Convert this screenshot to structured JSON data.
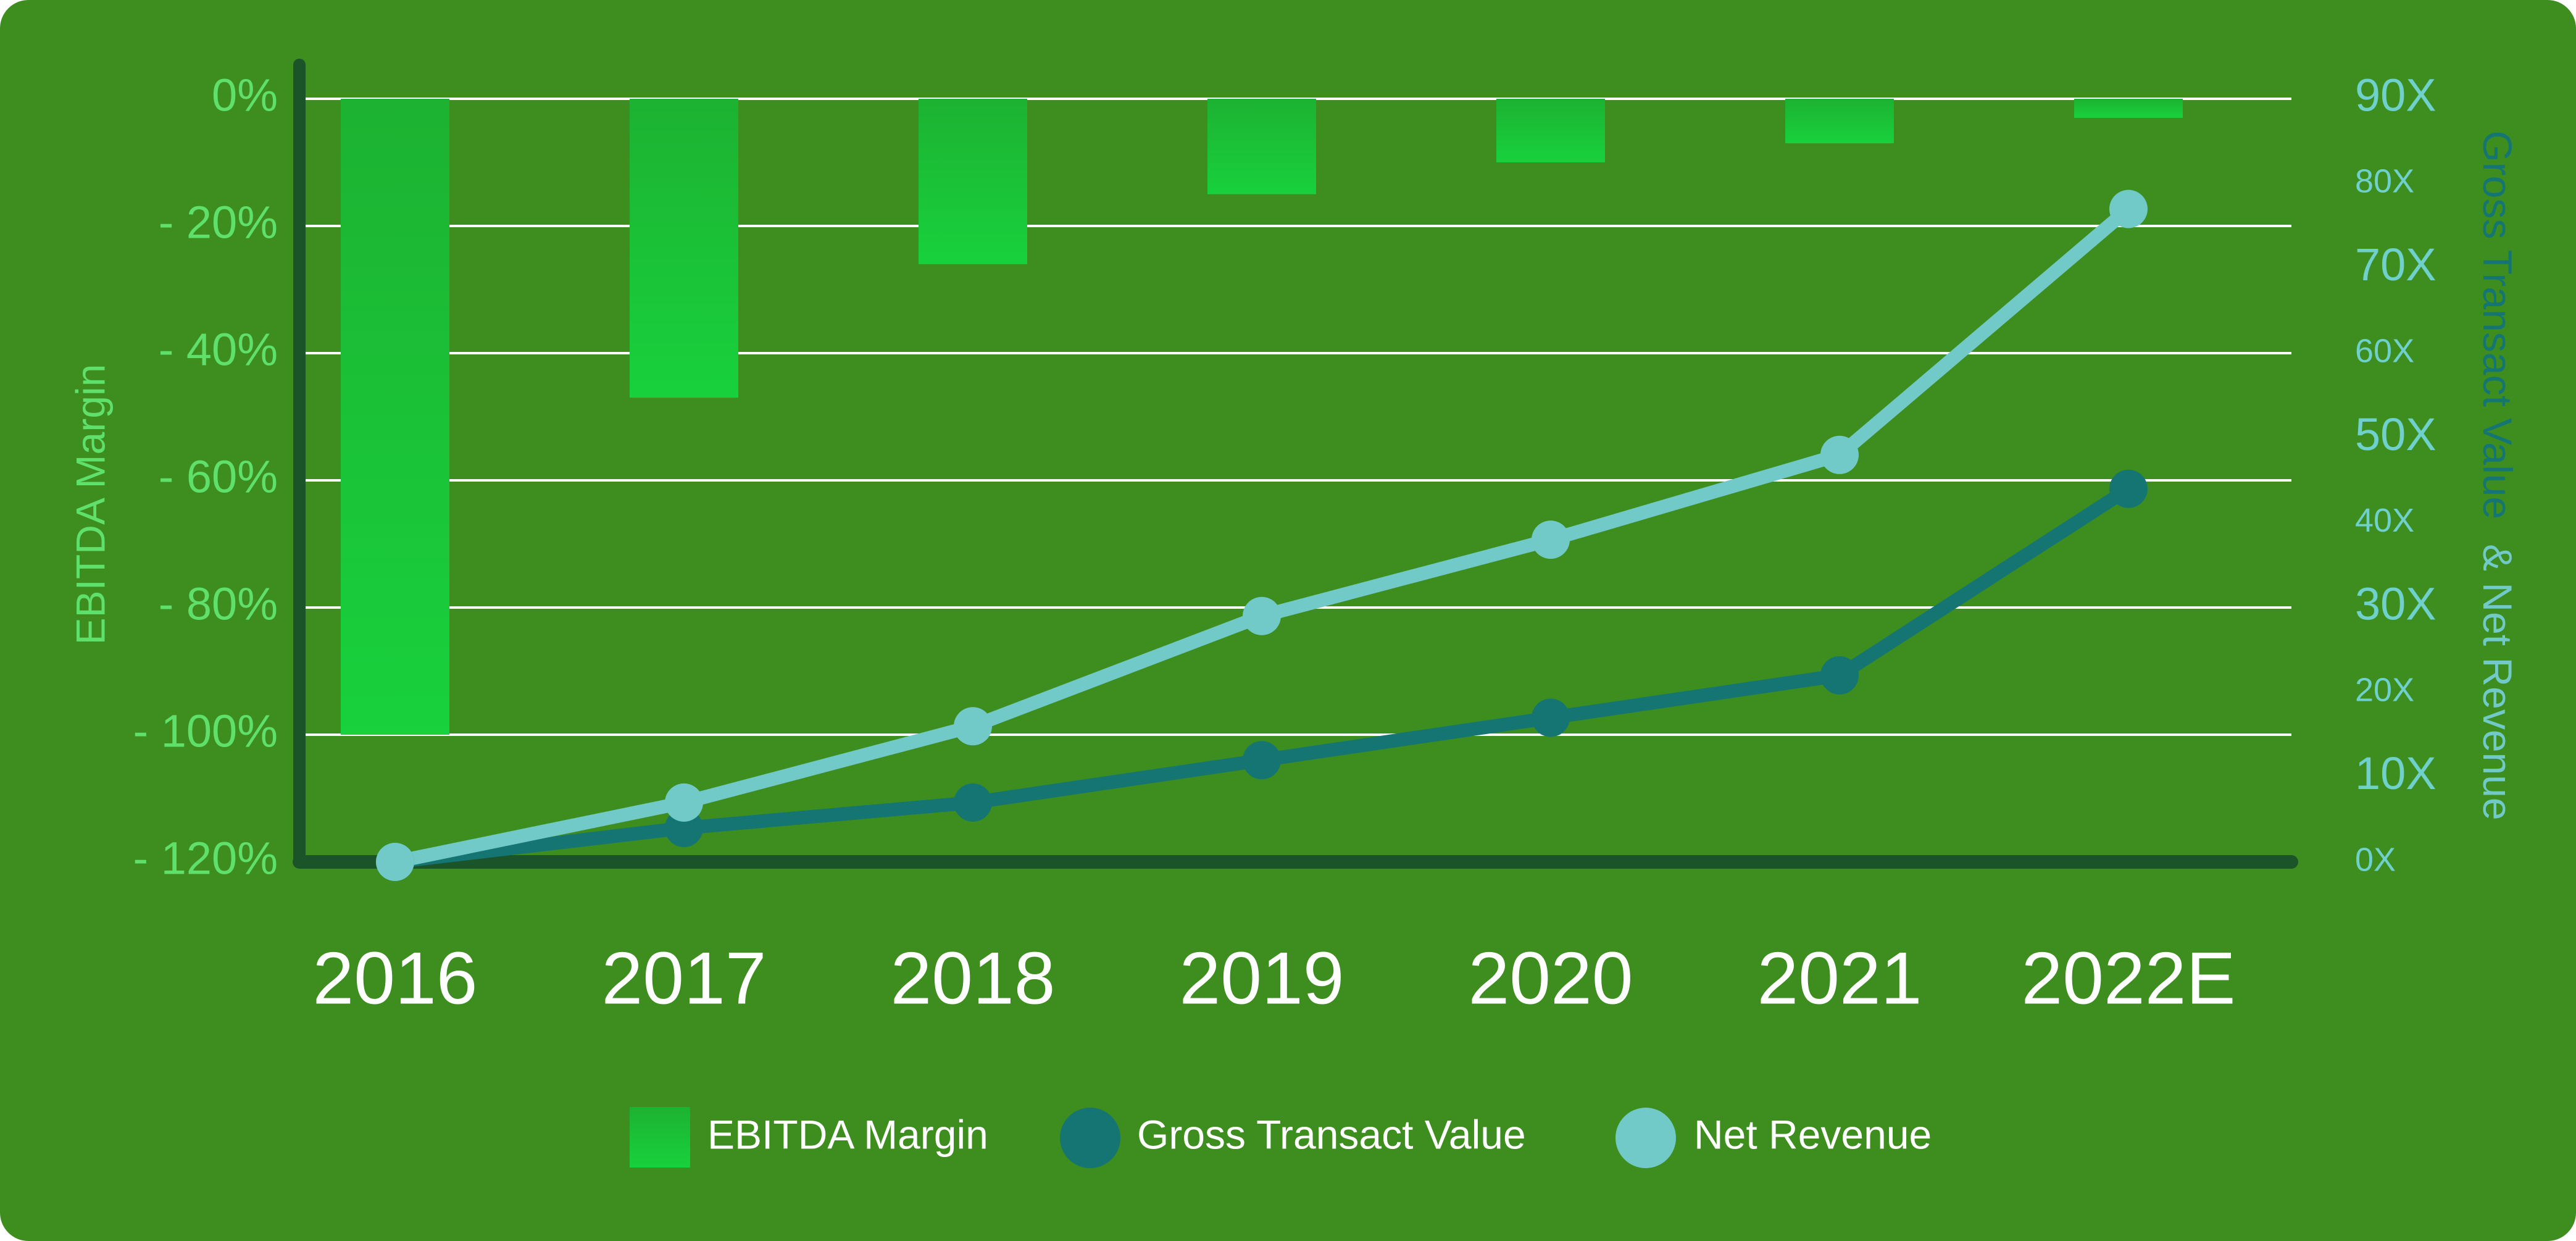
{
  "colors": {
    "background": "#3d8e1f",
    "bar_top": "#1db232",
    "bar_bottom": "#18d13c",
    "axis_line": "#1b5428",
    "grid": "#ffffff",
    "left_tick_text": "#5fe06b",
    "right_tick_text": "#6fd0cc",
    "category_text": "#ffffff",
    "gross_line": "#147573",
    "net_line": "#72cac8",
    "legend_text": "#ffffff"
  },
  "chart_data": {
    "type": "bar",
    "categories": [
      "2016",
      "2017",
      "2018",
      "2019",
      "2020",
      "2021",
      "2022E"
    ],
    "bar_series": {
      "name": "EBITDA Margin",
      "values": [
        -100,
        -47,
        -26,
        -15,
        -10,
        -7,
        -3
      ]
    },
    "line_series": [
      {
        "name": "Gross Transact Value",
        "values": [
          0,
          4,
          7,
          12,
          17,
          22,
          44
        ]
      },
      {
        "name": "Net Revenue",
        "values": [
          0,
          7,
          16,
          29,
          38,
          48,
          77
        ]
      }
    ],
    "y_left": {
      "label": "EBITDA Margin",
      "range": [
        -120,
        0
      ],
      "ticks": [
        0,
        -20,
        -40,
        -60,
        -80,
        -100,
        -120
      ],
      "tick_labels": [
        "0%",
        "- 20%",
        "- 40%",
        "- 60%",
        "- 80%",
        "- 100%",
        "- 120%"
      ]
    },
    "y_right": {
      "label_part1": "Gross Transact Value",
      "label_part2": "& Net Revenue",
      "range": [
        0,
        90
      ],
      "ticks": [
        90,
        80,
        70,
        60,
        50,
        40,
        30,
        20,
        10,
        0
      ],
      "tick_labels": [
        "90X",
        "80X",
        "70X",
        "60X",
        "50X",
        "40X",
        "30X",
        "20X",
        "10X",
        "0X"
      ]
    },
    "grid": true,
    "legend": {
      "position": "bottom",
      "items": [
        "EBITDA Margin",
        "Gross Transact Value",
        "Net Revenue"
      ]
    }
  }
}
